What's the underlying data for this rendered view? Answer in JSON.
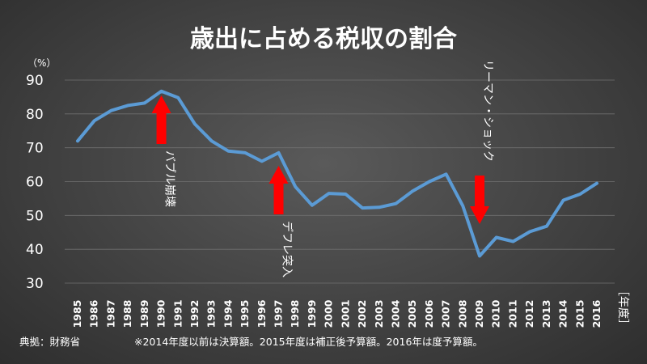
{
  "chart_data": {
    "type": "line",
    "title": "歳出に占める税収の割合",
    "ylabel": "（%）",
    "xlabel": "［年度］",
    "ylim": [
      30,
      90
    ],
    "yticks": [
      30,
      40,
      50,
      60,
      70,
      80,
      90
    ],
    "grid": true,
    "x": [
      "1985",
      "1986",
      "1987",
      "1988",
      "1989",
      "1990",
      "1991",
      "1992",
      "1993",
      "1994",
      "1995",
      "1996",
      "1997",
      "1998",
      "1999",
      "2000",
      "2001",
      "2002",
      "2003",
      "2004",
      "2005",
      "2006",
      "2007",
      "2008",
      "2009",
      "2010",
      "2011",
      "2012",
      "2013",
      "2014",
      "2015",
      "2016"
    ],
    "series": [
      {
        "values": [
          72.0,
          78.0,
          81.0,
          82.5,
          83.2,
          86.7,
          84.8,
          77.0,
          72.0,
          69.0,
          68.5,
          66.0,
          68.5,
          58.5,
          53.0,
          56.5,
          56.3,
          52.2,
          52.4,
          53.5,
          57.2,
          60.0,
          62.2,
          52.8,
          38.0,
          43.5,
          42.3,
          45.2,
          46.8,
          54.5,
          56.3,
          59.5
        ],
        "color": "#5b9bd5"
      }
    ],
    "annotations": [
      {
        "text": "バブル崩壊",
        "x": "1990",
        "type": "up-arrow"
      },
      {
        "text": "デフレ突入",
        "x": "1997",
        "type": "up-arrow"
      },
      {
        "text": "リーマン・ショック",
        "x": "2009",
        "type": "down-arrow"
      }
    ],
    "annotation_color": "#ff0000",
    "footnote_source": "典拠：財務省",
    "footnote_note": "※2014年度以前は決算額。2015年度は補正後予算額。2016年は度予算額。"
  }
}
